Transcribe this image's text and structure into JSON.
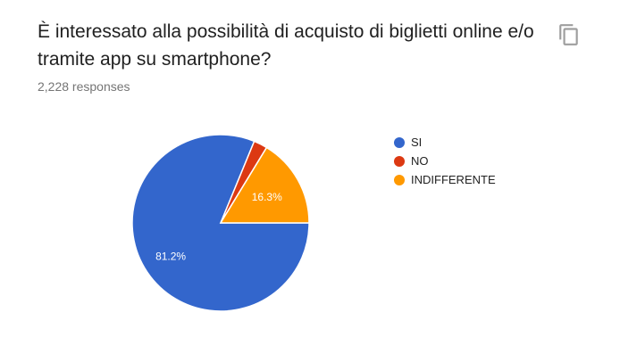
{
  "question": {
    "title": "È interessato alla possibilità di acquisto di biglietti online e/o tramite app su smartphone?",
    "response_count": "2,228 responses"
  },
  "toolbar": {
    "copy_icon": "copy-icon"
  },
  "chart_data": {
    "type": "pie",
    "title": "",
    "slices": [
      {
        "label": "SI",
        "value": 81.2,
        "color": "#3366cc",
        "data_label": "81.2%"
      },
      {
        "label": "NO",
        "value": 2.5,
        "color": "#dc3912",
        "data_label": ""
      },
      {
        "label": "INDIFFERENTE",
        "value": 16.3,
        "color": "#ff9900",
        "data_label": "16.3%"
      }
    ],
    "legend_position": "right",
    "start_angle": "3 o'clock, clockwise"
  }
}
